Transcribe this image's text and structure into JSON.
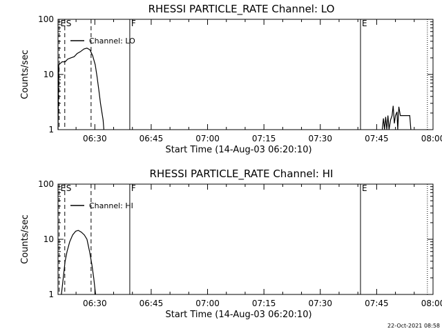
{
  "footer": {
    "timestamp": "22-Oct-2021 08:58"
  },
  "chart_data": [
    {
      "type": "line",
      "title": "RHESSI PARTICLE_RATE Channel: LO",
      "xlabel": "Start Time (14-Aug-03 06:20:10)",
      "ylabel": "Counts/sec",
      "x_unit": "minutes",
      "x_tick_values": [
        390,
        405,
        420,
        435,
        450,
        465,
        480
      ],
      "x_tick_labels": [
        "06:30",
        "06:45",
        "07:00",
        "07:15",
        "07:30",
        "07:45",
        "08:00"
      ],
      "xlim": [
        380.2,
        480
      ],
      "ylim": [
        1,
        100
      ],
      "yscale": "log",
      "y_tick_values": [
        1,
        10,
        100
      ],
      "y_tick_labels": [
        "1",
        "10",
        "100"
      ],
      "legend": {
        "position": "top-left",
        "entries": [
          "Channel: LO"
        ]
      },
      "markers": [
        {
          "label": "E",
          "x": 380.5,
          "style": "dashed"
        },
        {
          "label": "S",
          "x": 382.0,
          "style": "dashed"
        },
        {
          "label": "",
          "x": 389.0,
          "style": "dashed"
        },
        {
          "label": "F",
          "x": 399.3,
          "style": "solid"
        },
        {
          "label": "E",
          "x": 460.7,
          "style": "solid"
        },
        {
          "label": "",
          "x": 478.5,
          "style": "dotted"
        }
      ],
      "series": [
        {
          "name": "Channel: LO",
          "points": [
            [
              380.2,
              1.0
            ],
            [
              380.4,
              15.0
            ],
            [
              381.3,
              17.0
            ],
            [
              382.1,
              17.0
            ],
            [
              382.8,
              19.0
            ],
            [
              383.6,
              20.0
            ],
            [
              384.5,
              21.0
            ],
            [
              385.3,
              24.0
            ],
            [
              386.2,
              26.0
            ],
            [
              387.1,
              29.0
            ],
            [
              387.9,
              30.0
            ],
            [
              388.7,
              28.0
            ],
            [
              389.4,
              22.0
            ],
            [
              390.1,
              15.0
            ],
            [
              390.6,
              9.0
            ],
            [
              391.1,
              5.0
            ],
            [
              391.5,
              3.0
            ],
            [
              391.9,
              2.0
            ],
            [
              392.2,
              1.5
            ],
            [
              392.4,
              1.0
            ],
            [
              466.5,
              1.0
            ],
            [
              466.8,
              1.6
            ],
            [
              467.1,
              1.0
            ],
            [
              467.4,
              1.7
            ],
            [
              467.7,
              1.0
            ],
            [
              468.0,
              1.8
            ],
            [
              468.3,
              1.0
            ],
            [
              468.7,
              1.5
            ],
            [
              469.1,
              1.8
            ],
            [
              469.4,
              2.7
            ],
            [
              469.7,
              1.3
            ],
            [
              470.0,
              1.8
            ],
            [
              470.4,
              2.1
            ],
            [
              470.6,
              1.0
            ],
            [
              470.9,
              2.6
            ],
            [
              471.3,
              1.8
            ],
            [
              473.8,
              1.8
            ],
            [
              474.1,
              1.0
            ]
          ]
        }
      ]
    },
    {
      "type": "line",
      "title": "RHESSI PARTICLE_RATE Channel: HI",
      "xlabel": "Start Time (14-Aug-03 06:20:10)",
      "ylabel": "Counts/sec",
      "x_unit": "minutes",
      "x_tick_values": [
        390,
        405,
        420,
        435,
        450,
        465,
        480
      ],
      "x_tick_labels": [
        "06:30",
        "06:45",
        "07:00",
        "07:15",
        "07:30",
        "07:45",
        "08:00"
      ],
      "xlim": [
        380.2,
        480
      ],
      "ylim": [
        1,
        100
      ],
      "yscale": "log",
      "y_tick_values": [
        1,
        10,
        100
      ],
      "y_tick_labels": [
        "1",
        "10",
        "100"
      ],
      "legend": {
        "position": "top-left",
        "entries": [
          "Channel: HI"
        ]
      },
      "markers": [
        {
          "label": "E",
          "x": 380.5,
          "style": "dashed"
        },
        {
          "label": "S",
          "x": 382.0,
          "style": "dashed"
        },
        {
          "label": "",
          "x": 389.0,
          "style": "dashed"
        },
        {
          "label": "F",
          "x": 399.3,
          "style": "solid"
        },
        {
          "label": "E",
          "x": 460.7,
          "style": "solid"
        },
        {
          "label": "",
          "x": 478.5,
          "style": "dotted"
        }
      ],
      "series": [
        {
          "name": "Channel: HI",
          "points": [
            [
              381.1,
              1.0
            ],
            [
              381.6,
              2.0
            ],
            [
              382.1,
              4.0
            ],
            [
              382.6,
              6.0
            ],
            [
              383.3,
              9.0
            ],
            [
              384.1,
              12.0
            ],
            [
              384.9,
              14.0
            ],
            [
              385.6,
              14.5
            ],
            [
              386.4,
              13.5
            ],
            [
              387.2,
              12.0
            ],
            [
              387.9,
              10.0
            ],
            [
              388.6,
              6.0
            ],
            [
              389.2,
              3.5
            ],
            [
              389.7,
              2.0
            ],
            [
              390.2,
              1.0
            ]
          ]
        }
      ]
    }
  ]
}
